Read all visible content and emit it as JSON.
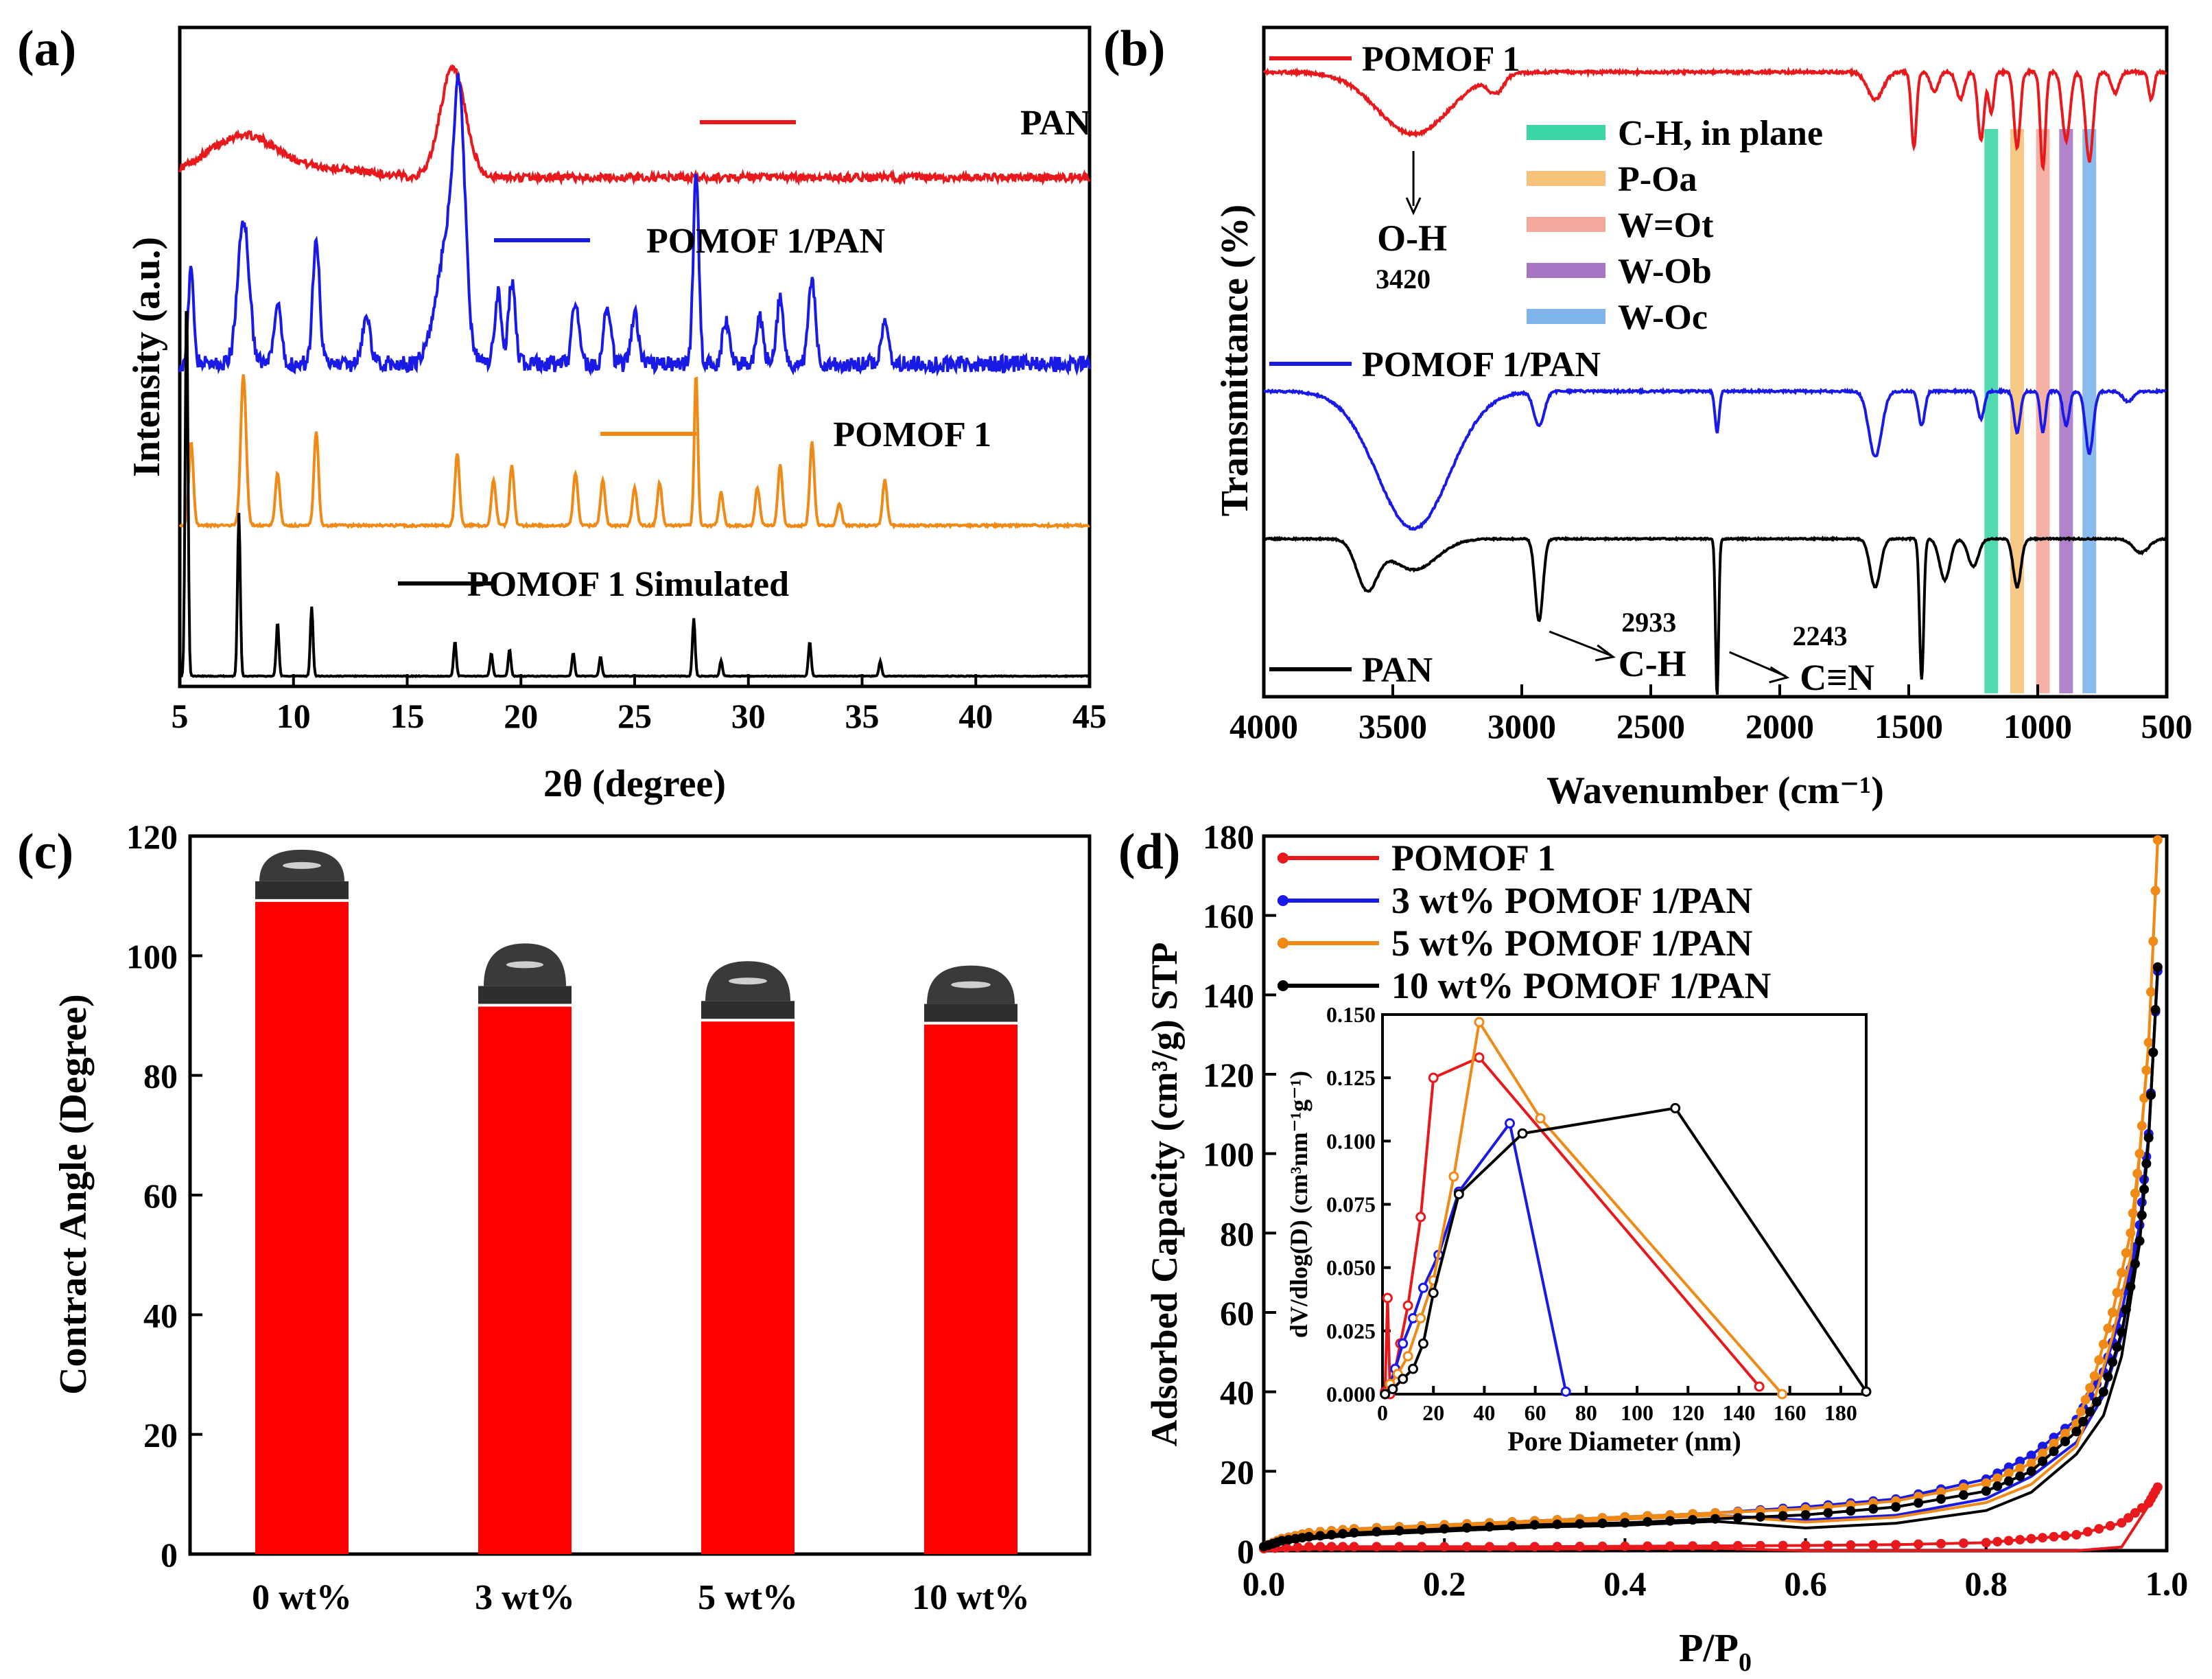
{
  "chart_data": [
    {
      "panel": "(a)",
      "type": "line",
      "title": "",
      "xlabel": "2θ (degree)",
      "ylabel": "Intensity (a.u.)",
      "xlim": [
        5,
        45
      ],
      "xticks": [
        5,
        10,
        15,
        20,
        25,
        30,
        35,
        40,
        45
      ],
      "series": [
        {
          "name": "PAN",
          "color": "#e8191c",
          "baseline": 0.12,
          "peaks": [
            [
              7.8,
              0.28,
              1.6
            ],
            [
              17.0,
              0.72,
              0.55
            ],
            [
              12.0,
              0.05,
              1.5
            ]
          ],
          "noise": 0.05
        },
        {
          "name": "POMOF 1/PAN",
          "color": "#1a1ae6",
          "baseline": 0.1,
          "peaks": [
            [
              5.5,
              0.45,
              0.12
            ],
            [
              7.8,
              0.7,
              0.25
            ],
            [
              9.3,
              0.28,
              0.15
            ],
            [
              11.0,
              0.62,
              0.15
            ],
            [
              13.2,
              0.2,
              0.2
            ],
            [
              16.8,
              0.6,
              0.5
            ],
            [
              17.3,
              1.0,
              0.25
            ],
            [
              19.0,
              0.35,
              0.15
            ],
            [
              19.6,
              0.4,
              0.15
            ],
            [
              22.4,
              0.32,
              0.15
            ],
            [
              23.8,
              0.28,
              0.15
            ],
            [
              25.0,
              0.25,
              0.15
            ],
            [
              27.7,
              0.95,
              0.12
            ],
            [
              29.0,
              0.2,
              0.15
            ],
            [
              30.5,
              0.22,
              0.15
            ],
            [
              31.4,
              0.32,
              0.15
            ],
            [
              32.8,
              0.42,
              0.15
            ],
            [
              36.0,
              0.2,
              0.15
            ]
          ],
          "noise": 0.08
        },
        {
          "name": "POMOF 1",
          "color": "#f08a17",
          "baseline": 0.02,
          "peaks": [
            [
              5.5,
              0.55,
              0.1
            ],
            [
              7.8,
              1.0,
              0.12
            ],
            [
              9.3,
              0.35,
              0.1
            ],
            [
              11.0,
              0.62,
              0.1
            ],
            [
              17.2,
              0.48,
              0.1
            ],
            [
              18.8,
              0.3,
              0.1
            ],
            [
              19.6,
              0.4,
              0.1
            ],
            [
              22.4,
              0.35,
              0.1
            ],
            [
              23.6,
              0.3,
              0.1
            ],
            [
              25.0,
              0.25,
              0.1
            ],
            [
              26.1,
              0.28,
              0.1
            ],
            [
              27.7,
              1.0,
              0.08
            ],
            [
              28.8,
              0.22,
              0.1
            ],
            [
              30.4,
              0.25,
              0.1
            ],
            [
              31.4,
              0.4,
              0.1
            ],
            [
              32.8,
              0.55,
              0.1
            ],
            [
              34.0,
              0.15,
              0.1
            ],
            [
              36.0,
              0.3,
              0.1
            ]
          ],
          "noise": 0.015
        },
        {
          "name": "POMOF 1 Simulated",
          "color": "#000000",
          "baseline": 0.0,
          "peaks": [
            [
              5.3,
              2.0,
              0.06
            ],
            [
              7.6,
              0.85,
              0.06
            ],
            [
              9.3,
              0.28,
              0.06
            ],
            [
              10.8,
              0.36,
              0.06
            ],
            [
              17.1,
              0.18,
              0.06
            ],
            [
              18.7,
              0.12,
              0.06
            ],
            [
              19.5,
              0.14,
              0.06
            ],
            [
              22.3,
              0.12,
              0.06
            ],
            [
              23.5,
              0.1,
              0.06
            ],
            [
              27.6,
              0.3,
              0.06
            ],
            [
              28.8,
              0.08,
              0.06
            ],
            [
              32.7,
              0.18,
              0.06
            ],
            [
              35.8,
              0.08,
              0.06
            ]
          ],
          "noise": 0.004
        }
      ]
    },
    {
      "panel": "(b)",
      "type": "line",
      "xlabel": "Wavenumber (cm⁻¹)",
      "ylabel": "Transmittance (%)",
      "xlim": [
        4000,
        500
      ],
      "xticks": [
        4000,
        3500,
        3000,
        2500,
        2000,
        1500,
        1000,
        500
      ],
      "series": [
        {
          "name": "POMOF 1",
          "color": "#e8191c"
        },
        {
          "name": "POMOF 1/PAN",
          "color": "#1a1ae6"
        },
        {
          "name": "PAN",
          "color": "#000000"
        }
      ],
      "bands": [
        {
          "label": "C-H, in plane",
          "color": "#3dd6a6",
          "x": 1180
        },
        {
          "label": "P-Oa",
          "color": "#f7c27a",
          "x": 1080
        },
        {
          "label": "W=Ot",
          "color": "#f5a99c",
          "x": 980
        },
        {
          "label": "W-Ob",
          "color": "#a875c4",
          "x": 890
        },
        {
          "label": "W-Oc",
          "color": "#7eb3ec",
          "x": 800
        }
      ],
      "annotations": [
        {
          "text": "O-H",
          "sub": "3420",
          "x": 3420
        },
        {
          "text": "C-H",
          "sub": "2933",
          "x": 2933
        },
        {
          "text": "C≡N",
          "sub": "2243",
          "x": 2243
        }
      ]
    },
    {
      "panel": "(c)",
      "type": "bar",
      "xlabel": "",
      "ylabel": "Contract Angle (Degree)",
      "ylim": [
        0,
        120
      ],
      "yticks": [
        0,
        20,
        40,
        60,
        80,
        100,
        120
      ],
      "categories": [
        "0 wt%",
        "3 wt%",
        "5 wt%",
        "10 wt%"
      ],
      "values": [
        109,
        91.5,
        89,
        88.5
      ],
      "color": "#ff0000"
    },
    {
      "panel": "(d)",
      "type": "line",
      "xlabel": "P/P",
      "xlabel_sub": "0",
      "ylabel": "Adsorbed Capacity (cm³/g) STP",
      "xlim": [
        0.0,
        1.0
      ],
      "ylim": [
        0,
        180
      ],
      "xticks": [
        "0.0",
        "0.2",
        "0.4",
        "0.6",
        "0.8",
        "1.0"
      ],
      "yticks": [
        0,
        20,
        40,
        60,
        80,
        100,
        120,
        140,
        160,
        180
      ],
      "series": [
        {
          "name": "POMOF 1",
          "color": "#e8191c",
          "x": [
            0.0,
            0.05,
            0.1,
            0.2,
            0.3,
            0.4,
            0.5,
            0.6,
            0.7,
            0.8,
            0.85,
            0.9,
            0.95,
            0.98,
            0.99
          ],
          "y": [
            0.5,
            1,
            1,
            1,
            1,
            1.1,
            1.2,
            1.3,
            1.5,
            2,
            3,
            4,
            7,
            12,
            16
          ]
        },
        {
          "name": "3 wt% POMOF 1/PAN",
          "color": "#1a1ae6",
          "x": [
            0.0,
            0.02,
            0.05,
            0.1,
            0.2,
            0.3,
            0.4,
            0.5,
            0.6,
            0.7,
            0.8,
            0.85,
            0.9,
            0.93,
            0.95,
            0.97,
            0.98,
            0.99
          ],
          "y": [
            1,
            3,
            4.5,
            5.5,
            6.5,
            7.5,
            8.5,
            9.5,
            11,
            13,
            18,
            24,
            33,
            45,
            60,
            82,
            105,
            146
          ]
        },
        {
          "name": "5 wt% POMOF 1/PAN",
          "color": "#f08a17",
          "x": [
            0.0,
            0.02,
            0.05,
            0.1,
            0.2,
            0.3,
            0.4,
            0.5,
            0.6,
            0.7,
            0.8,
            0.85,
            0.9,
            0.92,
            0.94,
            0.96,
            0.97,
            0.98,
            0.99
          ],
          "y": [
            1,
            3,
            4.5,
            5.5,
            6.5,
            7.5,
            8.5,
            9.5,
            10.5,
            12.5,
            17,
            22,
            32,
            44,
            60,
            80,
            100,
            128,
            179
          ]
        },
        {
          "name": "10 wt% POMOF 1/PAN",
          "color": "#000000",
          "x": [
            0.0,
            0.02,
            0.05,
            0.1,
            0.2,
            0.3,
            0.4,
            0.5,
            0.6,
            0.7,
            0.8,
            0.85,
            0.9,
            0.93,
            0.95,
            0.97,
            0.98,
            0.99
          ],
          "y": [
            1,
            2.5,
            3.5,
            4.5,
            5.5,
            6.5,
            7,
            8,
            9,
            11,
            15,
            20,
            30,
            40,
            55,
            78,
            104,
            147
          ]
        }
      ],
      "inset": {
        "xlabel": "Pore Diameter (nm)",
        "ylabel": "dV/dlog(D) (cm³nm⁻¹g⁻¹)",
        "xlim": [
          0,
          190
        ],
        "ylim": [
          0,
          0.15
        ],
        "xticks": [
          0,
          20,
          40,
          60,
          80,
          100,
          120,
          140,
          160,
          180
        ],
        "yticks": [
          "0.000",
          "0.025",
          "0.050",
          "0.075",
          "0.100",
          "0.125",
          "0.150"
        ],
        "series": [
          {
            "name": "POMOF 1",
            "color": "#e8191c",
            "x": [
              1,
              2,
              3,
              5,
              7,
              10,
              15,
              20,
              38,
              148
            ],
            "y": [
              0.001,
              0.038,
              0.0,
              0.01,
              0.02,
              0.035,
              0.07,
              0.125,
              0.133,
              0.003
            ]
          },
          {
            "name": "3 wt% POMOF 1/PAN",
            "color": "#1a1ae6",
            "x": [
              1,
              3,
              5,
              8,
              12,
              16,
              22,
              30,
              50,
              72
            ],
            "y": [
              0.0,
              0.004,
              0.01,
              0.02,
              0.03,
              0.042,
              0.055,
              0.08,
              0.107,
              0.001
            ]
          },
          {
            "name": "5 wt% POMOF 1/PAN",
            "color": "#f08a17",
            "x": [
              1,
              3,
              6,
              10,
              15,
              20,
              28,
              38,
              62,
              157
            ],
            "y": [
              0.0,
              0.004,
              0.008,
              0.015,
              0.03,
              0.045,
              0.086,
              0.147,
              0.109,
              0.0
            ]
          },
          {
            "name": "10 wt% POMOF 1/PAN",
            "color": "#000000",
            "x": [
              1,
              4,
              8,
              12,
              16,
              20,
              30,
              55,
              115,
              190
            ],
            "y": [
              0.0,
              0.002,
              0.006,
              0.01,
              0.02,
              0.04,
              0.079,
              0.103,
              0.113,
              0.001
            ]
          }
        ]
      }
    }
  ]
}
